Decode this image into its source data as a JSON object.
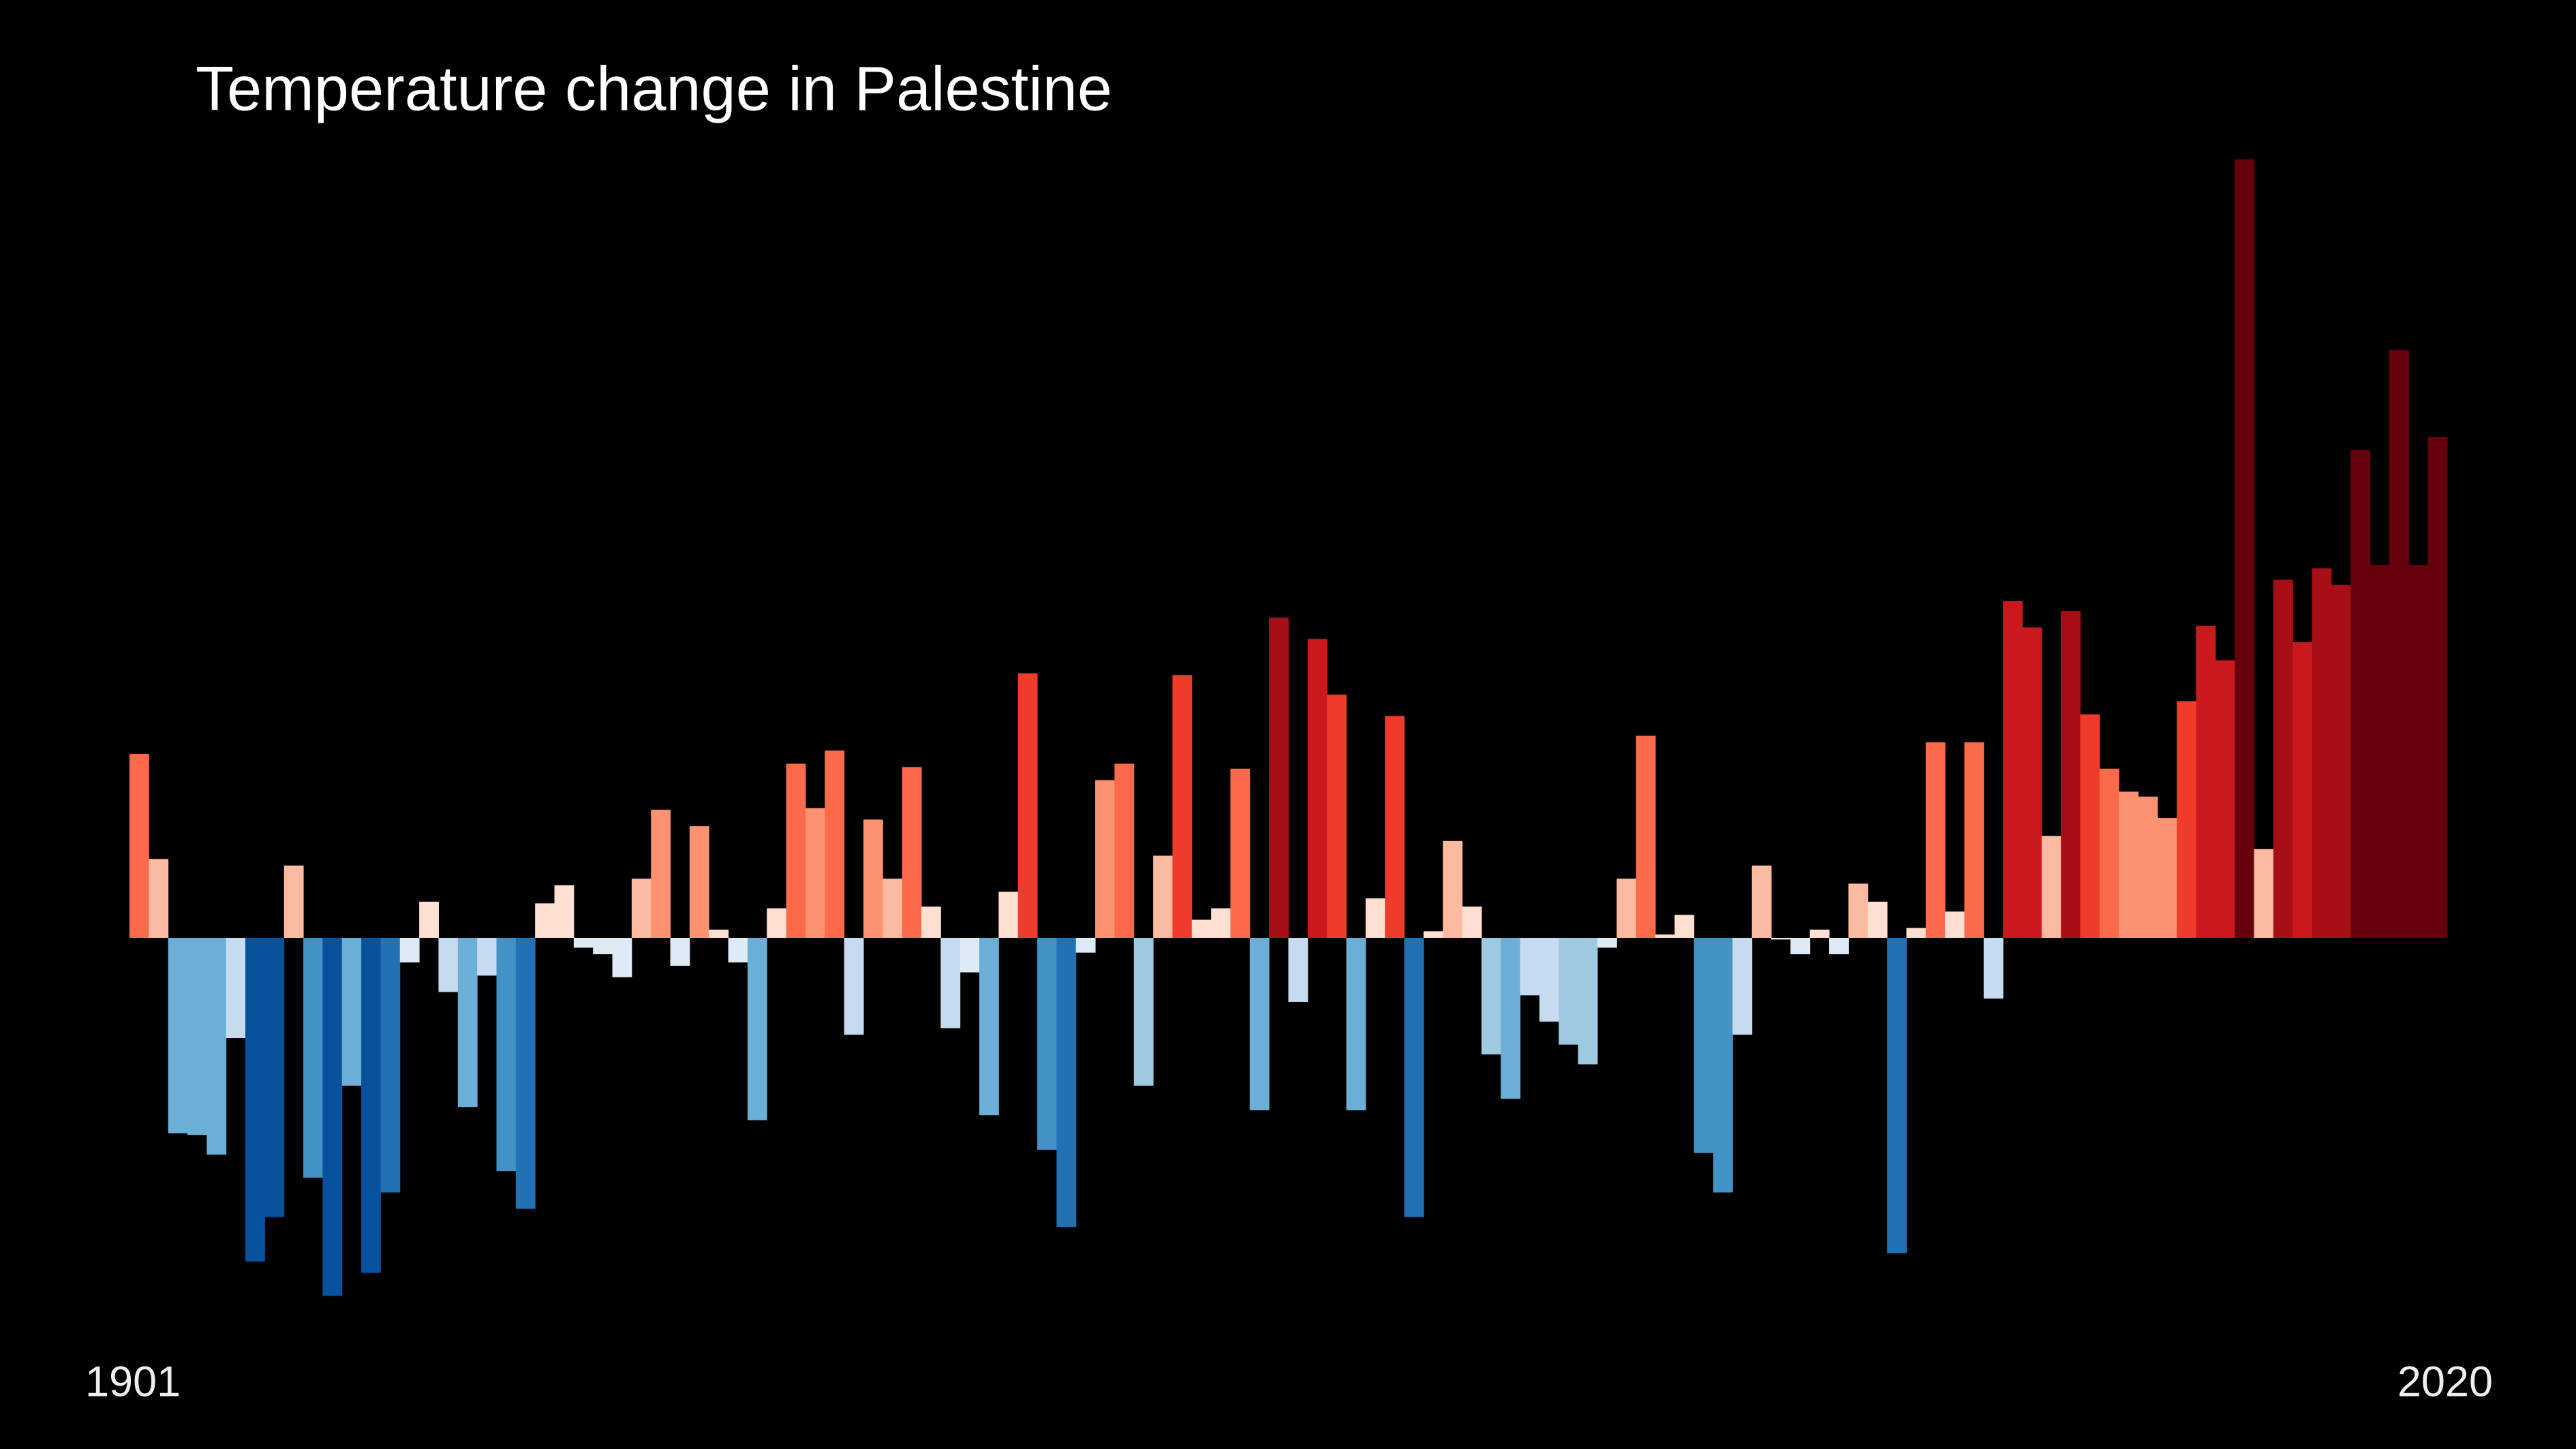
{
  "chart_data": {
    "type": "bar",
    "title": "Temperature change in Palestine",
    "categories": [
      "1901",
      null,
      null,
      null,
      null,
      null,
      null,
      null,
      null,
      null,
      null,
      null,
      null,
      null,
      null,
      null,
      null,
      null,
      null,
      null,
      null,
      null,
      null,
      null,
      null,
      null,
      null,
      null,
      null,
      null,
      null,
      null,
      null,
      null,
      null,
      null,
      null,
      null,
      null,
      null,
      null,
      null,
      null,
      null,
      null,
      null,
      null,
      null,
      null,
      null,
      null,
      null,
      null,
      null,
      null,
      null,
      null,
      null,
      null,
      null,
      null,
      null,
      null,
      null,
      null,
      null,
      null,
      null,
      null,
      null,
      null,
      null,
      null,
      null,
      null,
      null,
      null,
      null,
      null,
      null,
      null,
      null,
      null,
      null,
      null,
      null,
      null,
      null,
      null,
      null,
      null,
      null,
      null,
      null,
      null,
      null,
      null,
      null,
      null,
      null,
      null,
      null,
      null,
      null,
      null,
      null,
      null,
      null,
      null,
      null,
      null,
      null,
      null,
      null,
      null,
      null,
      null,
      null,
      null,
      "2020"
    ],
    "values": [
      1.12,
      0.48,
      -1.19,
      -1.2,
      -1.32,
      -0.61,
      -1.97,
      -1.7,
      0.44,
      -1.46,
      -2.18,
      -0.9,
      -2.04,
      -1.55,
      -0.15,
      0.22,
      -0.33,
      -1.03,
      -0.23,
      -1.42,
      -1.65,
      0.21,
      0.32,
      -0.06,
      -0.1,
      -0.24,
      0.36,
      0.78,
      -0.17,
      0.68,
      0.05,
      -0.15,
      -1.11,
      0.18,
      1.06,
      0.79,
      1.14,
      -0.59,
      0.72,
      0.36,
      1.04,
      0.19,
      -0.55,
      -0.21,
      -1.08,
      0.28,
      1.61,
      -1.29,
      -1.76,
      -0.09,
      0.96,
      1.06,
      -0.9,
      0.5,
      1.6,
      0.11,
      0.18,
      1.03,
      -1.05,
      1.95,
      -0.39,
      1.82,
      1.48,
      -1.05,
      0.24,
      1.35,
      -1.7,
      0.04,
      0.59,
      0.19,
      -0.71,
      -0.98,
      -0.35,
      -0.51,
      -0.65,
      -0.77,
      -0.06,
      0.36,
      1.23,
      0.02,
      0.14,
      -1.31,
      -1.55,
      -0.59,
      0.44,
      -0.01,
      -0.1,
      0.05,
      -0.1,
      0.33,
      0.22,
      -1.92,
      0.06,
      1.19,
      0.16,
      1.19,
      -0.37,
      2.05,
      1.89,
      0.62,
      1.99,
      1.36,
      1.03,
      0.89,
      0.86,
      0.73,
      1.44,
      1.9,
      1.69,
      4.74,
      0.54,
      2.18,
      1.8,
      2.25,
      2.15,
      2.97,
      2.27,
      3.58,
      2.27,
      3.05
    ],
    "colors": [
      "#fb6a4a",
      "#fcbba1",
      "#6baed6",
      "#6baed6",
      "#6baed6",
      "#c6dbef",
      "#08519c",
      "#08519c",
      "#fcbba1",
      "#4292c6",
      "#08519c",
      "#6baed6",
      "#08519c",
      "#2171b5",
      "#deebf7",
      "#fee0d2",
      "#c6dbef",
      "#6baed6",
      "#c6dbef",
      "#4292c6",
      "#2171b5",
      "#fee0d2",
      "#fee0d2",
      "#deebf7",
      "#deebf7",
      "#deebf7",
      "#fcbba1",
      "#fc9272",
      "#deebf7",
      "#fc9272",
      "#fee0d2",
      "#deebf7",
      "#6baed6",
      "#fee0d2",
      "#fb6a4a",
      "#fc9272",
      "#fb6a4a",
      "#c6dbef",
      "#fc9272",
      "#fcbba1",
      "#fb6a4a",
      "#fee0d2",
      "#c6dbef",
      "#deebf7",
      "#6baed6",
      "#fee0d2",
      "#ef3b2c",
      "#4292c6",
      "#2171b5",
      "#deebf7",
      "#fc9272",
      "#fb6a4a",
      "#9ecae1",
      "#fcbba1",
      "#ef3b2c",
      "#fee0d2",
      "#fee0d2",
      "#fb6a4a",
      "#6baed6",
      "#a50f15",
      "#c6dbef",
      "#cb181d",
      "#ef3b2c",
      "#6baed6",
      "#fee0d2",
      "#ef3b2c",
      "#2171b5",
      "#fee0d2",
      "#fcbba1",
      "#fee0d2",
      "#9ecae1",
      "#6baed6",
      "#c6dbef",
      "#c6dbef",
      "#9ecae1",
      "#9ecae1",
      "#deebf7",
      "#fcbba1",
      "#fb6a4a",
      "#fee0d2",
      "#fee0d2",
      "#4292c6",
      "#4292c6",
      "#c6dbef",
      "#fcbba1",
      "#deebf7",
      "#deebf7",
      "#fee0d2",
      "#deebf7",
      "#fcbba1",
      "#fee0d2",
      "#2171b5",
      "#fee0d2",
      "#fb6a4a",
      "#fee0d2",
      "#fb6a4a",
      "#c6dbef",
      "#cb181d",
      "#cb181d",
      "#fcbba1",
      "#a50f15",
      "#ef3b2c",
      "#fb6a4a",
      "#fc9272",
      "#fc9272",
      "#fc9272",
      "#ef3b2c",
      "#cb181d",
      "#cb181d",
      "#67000d",
      "#fcbba1",
      "#a50f15",
      "#cb181d",
      "#a50f15",
      "#a50f15",
      "#67000d",
      "#67000d",
      "#67000d",
      "#67000d",
      "#67000d"
    ]
  }
}
